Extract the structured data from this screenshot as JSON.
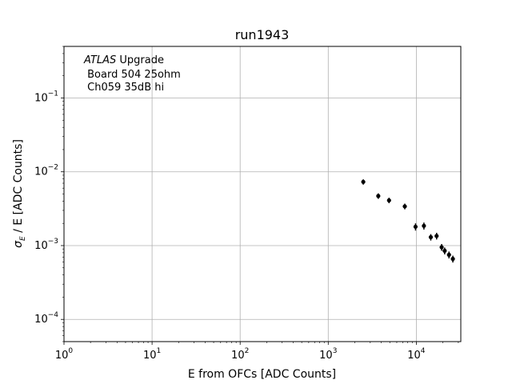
{
  "chart_data": {
    "type": "scatter",
    "title": "run1943",
    "xlabel": "E from OFCs [ADC Counts]",
    "ylabel_main": "σ",
    "ylabel_sub": "E",
    "ylabel_rest": " / E [ADC Counts]",
    "xscale": "log",
    "yscale": "log",
    "xlim": [
      1,
      32000
    ],
    "ylim": [
      5e-05,
      0.5
    ],
    "grid": true,
    "x_ticks": [
      {
        "value": 1,
        "base": "10",
        "exp": "0"
      },
      {
        "value": 10,
        "base": "10",
        "exp": "1"
      },
      {
        "value": 100,
        "base": "10",
        "exp": "2"
      },
      {
        "value": 1000,
        "base": "10",
        "exp": "3"
      },
      {
        "value": 10000,
        "base": "10",
        "exp": "4"
      }
    ],
    "y_ticks": [
      {
        "value": 0.0001,
        "base": "10",
        "exp": "−4"
      },
      {
        "value": 0.001,
        "base": "10",
        "exp": "−3"
      },
      {
        "value": 0.01,
        "base": "10",
        "exp": "−2"
      },
      {
        "value": 0.1,
        "base": "10",
        "exp": "−1"
      }
    ],
    "annotation": {
      "italic": "ATLAS",
      "rest": " Upgrade",
      "line2": " Board 504 25ohm",
      "line3": " Ch059 35dB hi"
    },
    "marker_color": "#000000",
    "points": [
      {
        "x": 2500,
        "y": 0.0073,
        "yerr": 0.0006
      },
      {
        "x": 3700,
        "y": 0.0047,
        "yerr": 0.0004
      },
      {
        "x": 4900,
        "y": 0.0041,
        "yerr": 0.00035
      },
      {
        "x": 7400,
        "y": 0.0034,
        "yerr": 0.0003
      },
      {
        "x": 9800,
        "y": 0.0018,
        "yerr": 0.0002
      },
      {
        "x": 12200,
        "y": 0.00185,
        "yerr": 0.0002
      },
      {
        "x": 14600,
        "y": 0.0013,
        "yerr": 0.00013
      },
      {
        "x": 17000,
        "y": 0.00135,
        "yerr": 0.00014
      },
      {
        "x": 19400,
        "y": 0.00095,
        "yerr": 0.0001
      },
      {
        "x": 21000,
        "y": 0.00085,
        "yerr": 9e-05
      },
      {
        "x": 23500,
        "y": 0.00075,
        "yerr": 8e-05
      },
      {
        "x": 26000,
        "y": 0.00066,
        "yerr": 7e-05
      }
    ]
  }
}
